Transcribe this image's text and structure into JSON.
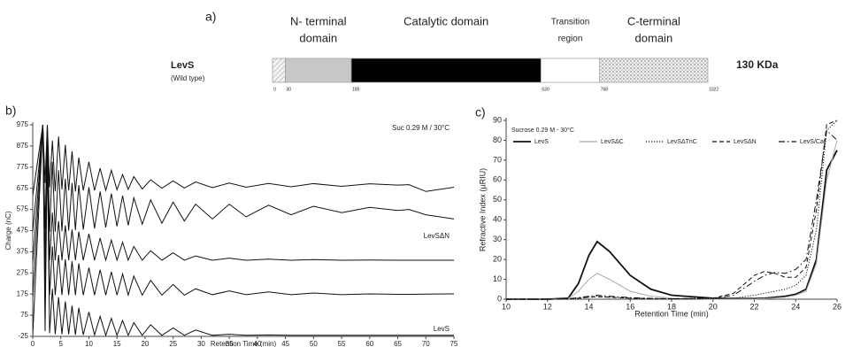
{
  "panel_a": {
    "panel": "a)",
    "protein": "LevS",
    "variant": "(Wild type)",
    "mass": "130 KDa",
    "domains": [
      [
        "N- terminal",
        "domain"
      ],
      [
        "Catalytic domain"
      ],
      [
        "Transition",
        "region"
      ],
      [
        "C-terminal",
        "domain"
      ]
    ],
    "positions": [
      0,
      30,
      185,
      630,
      768,
      1022
    ]
  },
  "chart_data": [
    {
      "type": "line",
      "panel": "b)",
      "title": "Suc 0.29 M / 30°C",
      "annotations": [
        "LevSΔN",
        "LevS"
      ],
      "xlabel": "Retention Time (min)",
      "ylabel": "Charge (nC)",
      "x": [
        0,
        1.8,
        2.2,
        2.6,
        3.0,
        3.5,
        4.0,
        4.6,
        5.2,
        5.8,
        6.4,
        7.0,
        7.6,
        8.2,
        9.0,
        10.0,
        11.0,
        12.0,
        13.0,
        14.0,
        15.0,
        16.0,
        17.0,
        18.0,
        19.5,
        21.0,
        23.0,
        25.0,
        27.0,
        29.0,
        32.0,
        35.0,
        38.0,
        42.0,
        46.0,
        50.0,
        55.0,
        60.0,
        65.0,
        67.0,
        70.0,
        75.0
      ],
      "series": [
        {
          "color": "#111111",
          "values": [
            640,
            975,
            700,
            975,
            680,
            900,
            660,
            920,
            670,
            880,
            665,
            850,
            660,
            820,
            665,
            800,
            665,
            770,
            665,
            760,
            668,
            740,
            670,
            730,
            672,
            715,
            675,
            710,
            676,
            705,
            678,
            700,
            680,
            698,
            682,
            697,
            684,
            696,
            690,
            692,
            660,
            680
          ]
        },
        {
          "color": "#111111",
          "values": [
            470,
            975,
            480,
            975,
            470,
            800,
            470,
            760,
            472,
            720,
            475,
            700,
            478,
            690,
            480,
            680,
            485,
            660,
            490,
            650,
            495,
            640,
            500,
            630,
            505,
            620,
            510,
            610,
            520,
            600,
            530,
            600,
            540,
            595,
            550,
            590,
            560,
            585,
            570,
            575,
            550,
            530
          ]
        },
        {
          "color": "#111111",
          "values": [
            320,
            975,
            340,
            880,
            335,
            560,
            335,
            520,
            335,
            500,
            335,
            480,
            335,
            470,
            335,
            460,
            335,
            440,
            335,
            430,
            335,
            420,
            335,
            400,
            335,
            380,
            335,
            370,
            335,
            355,
            335,
            345,
            335,
            340,
            335,
            338,
            335,
            336,
            335,
            335,
            335,
            335
          ]
        },
        {
          "color": "#111111",
          "values": [
            160,
            975,
            180,
            900,
            170,
            400,
            170,
            360,
            170,
            340,
            170,
            330,
            170,
            320,
            170,
            300,
            170,
            290,
            170,
            280,
            170,
            270,
            170,
            260,
            170,
            240,
            170,
            220,
            170,
            200,
            172,
            190,
            172,
            185,
            172,
            180,
            172,
            176,
            174,
            174,
            175,
            176
          ]
        },
        {
          "color": "#111111",
          "values": [
            -20,
            975,
            0,
            850,
            -10,
            200,
            -15,
            160,
            -15,
            140,
            -15,
            120,
            -18,
            110,
            -18,
            90,
            -18,
            70,
            -20,
            60,
            -20,
            50,
            -20,
            40,
            -20,
            30,
            -20,
            15,
            -20,
            5,
            -20,
            -15,
            -20,
            -18,
            -20,
            -20,
            -20,
            -20,
            -20,
            -20,
            -20,
            -20
          ]
        }
      ],
      "xlim": [
        0,
        75
      ],
      "xticks": [
        0,
        5,
        10,
        15,
        20,
        25,
        30,
        35,
        40,
        45,
        50,
        55,
        60,
        65,
        70,
        75
      ],
      "ylim": [
        -25,
        975
      ],
      "yticks": [
        -25,
        75,
        175,
        275,
        375,
        475,
        575,
        675,
        775,
        875,
        975
      ]
    },
    {
      "type": "line",
      "panel": "c)",
      "title": "Sucrose 0.29 M - 30°C",
      "xlabel": "Retention Time (min)",
      "ylabel": "Refractive Index (µRIU)",
      "x": [
        10,
        12,
        13,
        13.5,
        14,
        14.4,
        15,
        16,
        17,
        18,
        20,
        21,
        22,
        22.5,
        23,
        23.5,
        24,
        24.5,
        25,
        25.5,
        26
      ],
      "series": [
        {
          "name": "LevS",
          "color": "#111111",
          "linestyle": "solid",
          "values": [
            0,
            0,
            0.5,
            8,
            22,
            29,
            24,
            12,
            5,
            2,
            0.5,
            0.3,
            0.3,
            0.5,
            1,
            1.5,
            2.5,
            5,
            20,
            65,
            75
          ]
        },
        {
          "name": "LevSΔC",
          "color": "#aaaaaa",
          "linestyle": "solid",
          "values": [
            0,
            0,
            0.3,
            4,
            10,
            13,
            10,
            4,
            1.5,
            0.5,
            0,
            0,
            0,
            0.3,
            0.6,
            1,
            2,
            4,
            18,
            60,
            80
          ]
        },
        {
          "name": "LevSΔTnC",
          "color": "#111111",
          "linestyle": "dotted",
          "values": [
            0,
            0,
            0.2,
            0.5,
            1,
            1.5,
            1,
            0.5,
            0.3,
            0.2,
            0.2,
            0.5,
            2,
            3,
            4,
            5,
            7,
            12,
            35,
            85,
            90
          ]
        },
        {
          "name": "LevSΔN",
          "color": "#111111",
          "linestyle": "dashed",
          "values": [
            0,
            0,
            0.2,
            0.5,
            1,
            1.2,
            1,
            0.5,
            0.3,
            0.2,
            0.5,
            3,
            12,
            14,
            13,
            11,
            11,
            16,
            45,
            88,
            90
          ]
        },
        {
          "name": "LevS/Cat",
          "color": "#111111",
          "linestyle": "dashdot",
          "values": [
            0,
            0,
            0.2,
            0.8,
            1.5,
            2,
            1.5,
            0.8,
            0.4,
            0.2,
            0.5,
            2,
            9,
            12,
            13.5,
            13,
            15,
            20,
            50,
            85,
            80
          ]
        }
      ],
      "xlim": [
        10,
        26
      ],
      "xticks": [
        10,
        12,
        14,
        16,
        18,
        20,
        22,
        24,
        26
      ],
      "ylim": [
        0,
        90
      ],
      "yticks": [
        0,
        10,
        20,
        30,
        40,
        50,
        60,
        70,
        80,
        90
      ]
    }
  ]
}
